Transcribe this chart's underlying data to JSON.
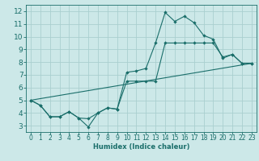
{
  "title": "",
  "xlabel": "Humidex (Indice chaleur)",
  "ylabel": "",
  "background_color": "#cce8e8",
  "grid_color": "#aacfcf",
  "line_color": "#1a6e6a",
  "xlim": [
    -0.5,
    23.5
  ],
  "ylim": [
    2.5,
    12.5
  ],
  "xticks": [
    0,
    1,
    2,
    3,
    4,
    5,
    6,
    7,
    8,
    9,
    10,
    11,
    12,
    13,
    14,
    15,
    16,
    17,
    18,
    19,
    20,
    21,
    22,
    23
  ],
  "yticks": [
    3,
    4,
    5,
    6,
    7,
    8,
    9,
    10,
    11,
    12
  ],
  "line1_x": [
    0,
    1,
    2,
    3,
    4,
    5,
    6,
    7,
    8,
    9,
    10,
    11,
    12,
    13,
    14,
    15,
    16,
    17,
    18,
    19,
    20,
    21,
    22,
    23
  ],
  "line1_y": [
    5.0,
    4.6,
    3.7,
    3.7,
    4.1,
    3.6,
    2.9,
    4.0,
    4.4,
    4.3,
    7.2,
    7.3,
    7.5,
    9.5,
    11.9,
    11.2,
    11.6,
    11.1,
    10.1,
    9.8,
    8.3,
    8.6,
    7.9,
    7.9
  ],
  "line2_x": [
    0,
    1,
    2,
    3,
    4,
    5,
    6,
    7,
    8,
    9,
    10,
    11,
    12,
    13,
    14,
    15,
    16,
    17,
    18,
    19,
    20,
    21,
    22,
    23
  ],
  "line2_y": [
    5.0,
    4.6,
    3.7,
    3.7,
    4.1,
    3.6,
    3.55,
    4.0,
    4.4,
    4.3,
    6.5,
    6.5,
    6.5,
    6.5,
    9.5,
    9.5,
    9.5,
    9.5,
    9.5,
    9.5,
    8.4,
    8.6,
    7.9,
    7.9
  ],
  "line3_x": [
    0,
    23
  ],
  "line3_y": [
    5.0,
    7.9
  ]
}
